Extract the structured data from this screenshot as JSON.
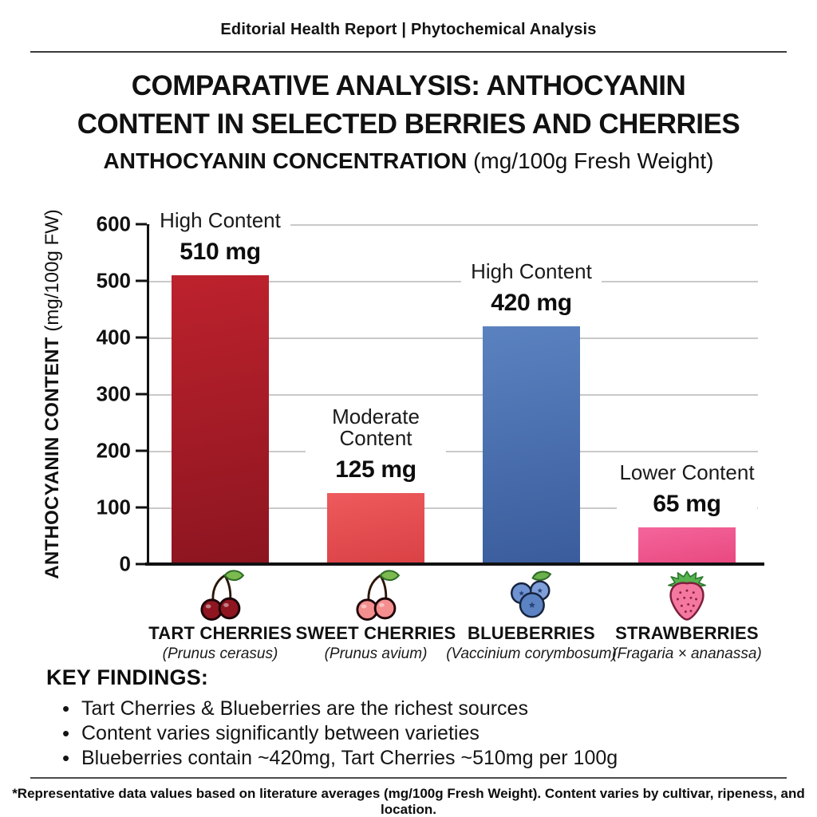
{
  "header": {
    "kicker": "Editorial Health Report | Phytochemical Analysis"
  },
  "title": {
    "line1": "COMPARATIVE ANALYSIS: ANTHOCYANIN",
    "line2": "CONTENT IN SELECTED BERRIES AND CHERRIES"
  },
  "subtitle": {
    "main": "ANTHOCYANIN CONCENTRATION",
    "units": " (mg/100g Fresh Weight)"
  },
  "chart_data": {
    "type": "bar",
    "title": "ANTHOCYANIN CONCENTRATION (mg/100g Fresh Weight)",
    "ylabel_main": "ANTHOCYANIN CONTENT",
    "ylabel_units": " (mg/100g FW)",
    "ylim": [
      0,
      600
    ],
    "yticks": [
      0,
      100,
      200,
      300,
      400,
      500,
      600
    ],
    "grid": true,
    "legend": "none",
    "categories": [
      "TART CHERRIES",
      "SWEET CHERRIES",
      "BLUEBERRIES",
      "STRAWBERRIES"
    ],
    "values": [
      510,
      125,
      420,
      65
    ],
    "bars": [
      {
        "category": "TART CHERRIES",
        "latin": "(Prunus cerasus)",
        "value": 510,
        "value_label": "510 mg",
        "qualifier": "High Content",
        "color": "#a01b28",
        "color_top": "#bd222d",
        "color_bottom": "#8c1520",
        "icon": "tart-cherries-icon"
      },
      {
        "category": "SWEET CHERRIES",
        "latin": "(Prunus avium)",
        "value": 125,
        "value_label": "125 mg",
        "qualifier": "Moderate Content",
        "color": "#e44d50",
        "color_top": "#ee5a5d",
        "color_bottom": "#d94145",
        "icon": "sweet-cherries-icon"
      },
      {
        "category": "BLUEBERRIES",
        "latin": "(Vaccinium corymbosum)",
        "value": 420,
        "value_label": "420 mg",
        "qualifier": "High Content",
        "color": "#4a70ae",
        "color_top": "#5b82c0",
        "color_bottom": "#3a5c9c",
        "icon": "blueberries-icon"
      },
      {
        "category": "STRAWBERRIES",
        "latin": "(Fragaria × ananassa)",
        "value": 65,
        "value_label": "65 mg",
        "qualifier": "Lower Content",
        "color": "#f0558a",
        "color_top": "#f4659b",
        "color_bottom": "#e8487f",
        "icon": "strawberry-icon"
      }
    ]
  },
  "key_findings": {
    "heading": "KEY FINDINGS:",
    "bullets": [
      "Tart Cherries & Blueberries are the richest sources",
      "Content varies significantly between varieties",
      "Blueberries contain ~420mg, Tart Cherries ~510mg per 100g"
    ]
  },
  "footer": {
    "note": "*Representative data values based on literature averages (mg/100g Fresh Weight). Content varies by cultivar, ripeness, and location."
  }
}
